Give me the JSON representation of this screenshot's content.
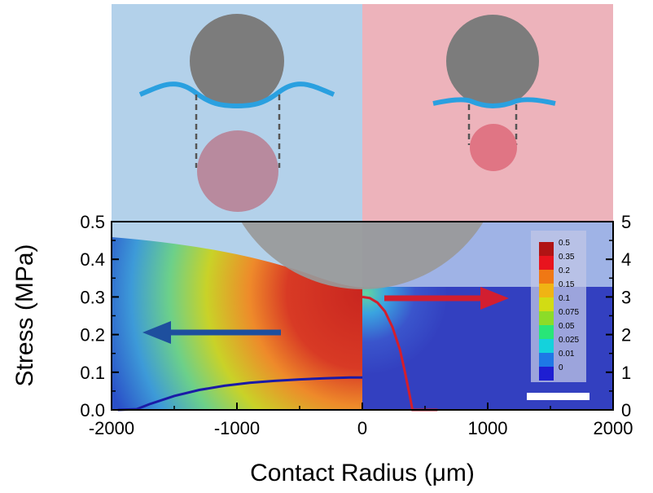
{
  "chart_data": {
    "type": "line",
    "xlabel": "Contact Radius (μm)",
    "ylabel": "Stress (MPa)",
    "xlim": [
      -2000,
      2000
    ],
    "ylim_left": [
      0,
      0.5
    ],
    "ylim_right": [
      0,
      5
    ],
    "x_ticks": [
      "-2000",
      "-1000",
      "0",
      "1000",
      "2000"
    ],
    "y_ticks_left": [
      "0.0",
      "0.1",
      "0.2",
      "0.3",
      "0.4",
      "0.5"
    ],
    "y_ticks_right": [
      "0",
      "1",
      "2",
      "3",
      "4",
      "5"
    ],
    "series": [
      {
        "axis": "left",
        "color": "#1a1aa6",
        "x": [
          -1950,
          -1800,
          -1700,
          -1500,
          -1300,
          -1100,
          -900,
          -700,
          -500,
          -300,
          -100,
          0
        ],
        "y": [
          0.0,
          0.002,
          0.015,
          0.037,
          0.053,
          0.064,
          0.072,
          0.077,
          0.081,
          0.084,
          0.086,
          0.086
        ]
      },
      {
        "axis": "right",
        "color": "#d41e2c",
        "x": [
          0,
          60,
          120,
          180,
          240,
          300,
          340,
          380,
          400,
          600
        ],
        "y": [
          3.0,
          2.97,
          2.85,
          2.62,
          2.2,
          1.6,
          1.0,
          0.35,
          0.0,
          0.0
        ]
      }
    ],
    "colorbar": {
      "labels": [
        "0.5",
        "0.35",
        "0.2",
        "0.15",
        "0.1",
        "0.075",
        "0.05",
        "0.025",
        "0.01",
        "0"
      ],
      "colors": [
        "#b01414",
        "#e8141e",
        "#f07814",
        "#f0b414",
        "#d2dc14",
        "#8cdc28",
        "#28e678",
        "#14d2dc",
        "#1e78e6",
        "#1e1ed2"
      ]
    },
    "grid": false
  },
  "colors": {
    "left_panel": "#b3d1ea",
    "right_panel": "#edb3bb",
    "sphere": "#7c7c7c",
    "membrane": "#2aa0e0",
    "contact_disk_left": "#b88a9e",
    "contact_disk_right": "#e07584",
    "blue_arrow": "#1e4f9e",
    "red_arrow": "#d21e30",
    "plot_background_blue": "#3340c0",
    "scale_bar": "#ffffff"
  }
}
